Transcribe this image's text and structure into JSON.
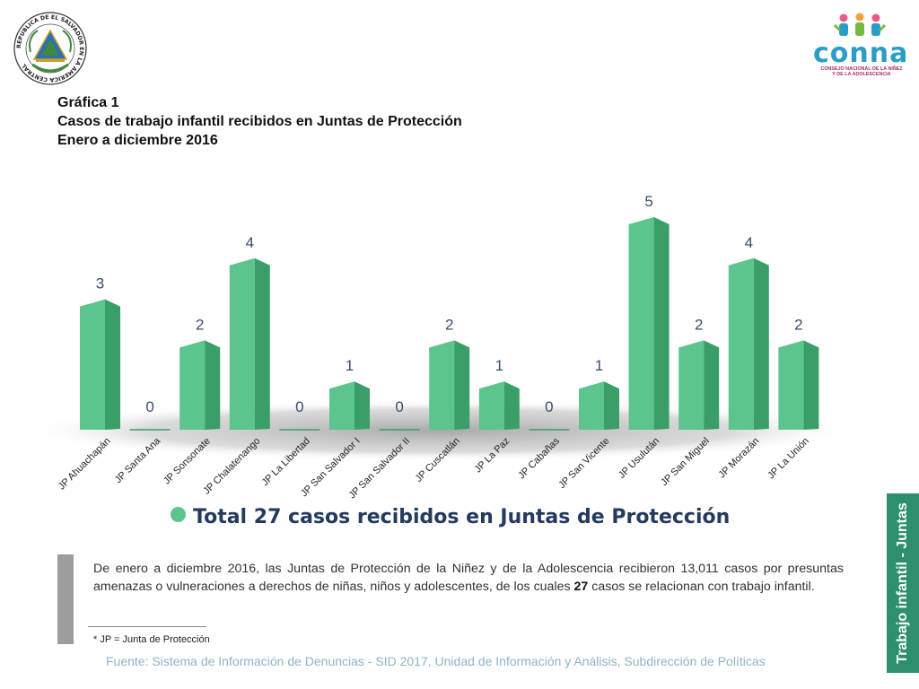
{
  "seal": {
    "ring_text": "REPUBLICA DE EL SALVADOR EN LA AMERICA CENTRAL"
  },
  "logo": {
    "word": "conna",
    "subtitle_line1": "CONSEJO NACIONAL DE LA NIÑEZ",
    "subtitle_line2": "Y DE LA ADOLESCENCIA"
  },
  "heading": {
    "line1": "Gráfica 1",
    "line2": "Casos de trabajo infantil recibidos en Juntas de Protección",
    "line3": "Enero a diciembre 2016"
  },
  "chart_data": {
    "type": "bar",
    "categories": [
      "JP Ahuachapán",
      "JP Santa Ana",
      "JP Sonsonate",
      "JP Chalatenango",
      "JP La Libertad",
      "JP San Salvador I",
      "JP San Salvador II",
      "JP Cuscatlán",
      "JP La Paz",
      "JP Cabañas",
      "JP San Vicente",
      "JP Usulután",
      "JP San Miguel",
      "JP Morazán",
      "JP La Unión"
    ],
    "values": [
      3,
      0,
      2,
      4,
      0,
      1,
      0,
      2,
      1,
      0,
      1,
      5,
      2,
      4,
      2
    ],
    "ylim": [
      0,
      5
    ],
    "grid": false,
    "legend": "none",
    "bar_color": "#5cc48d",
    "bar_side_color": "#3a9e68",
    "label_color": "#3a4a6b"
  },
  "total": {
    "text": "Total 27 casos recibidos en Juntas de Protección"
  },
  "paragraph": {
    "part1": "De enero a diciembre 2016, las Juntas de Protección de la Niñez y de la Adolescencia recibieron 13,011 casos por presuntas amenazas o vulneraciones a derechos de niñas, niños y adolescentes, de los cuales ",
    "bold": "27",
    "part2": " casos se relacionan con trabajo infantil."
  },
  "footnote": "* JP = Junta de Protección",
  "source": "Fuente: Sistema de Información de Denuncias - SID 2017, Unidad de Información y Análisis, Subdirección de Políticas",
  "side_tab": "Trabajo infantil - Juntas"
}
